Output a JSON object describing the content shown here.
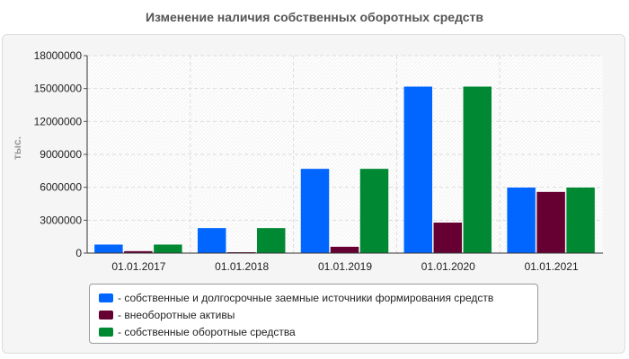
{
  "chart_data": {
    "type": "bar",
    "title": "Изменение наличия собственных оборотных средств",
    "ylabel": "тыс.",
    "xlabel": "",
    "ylim": [
      0,
      18000000
    ],
    "yticks": [
      0,
      3000000,
      6000000,
      9000000,
      12000000,
      15000000,
      18000000
    ],
    "grid": true,
    "legend_position": "bottom",
    "categories": [
      "01.01.2017",
      "01.01.2018",
      "01.01.2019",
      "01.01.2020",
      "01.01.2021"
    ],
    "series": [
      {
        "name": "- собственные и долгосрочные заемные источники формирования средств",
        "color": "#0066ff",
        "values": [
          800000,
          2300000,
          7700000,
          15200000,
          6000000
        ]
      },
      {
        "name": "- внеоборотные активы",
        "color": "#660033",
        "values": [
          200000,
          100000,
          600000,
          2800000,
          5600000
        ]
      },
      {
        "name": "- собственные оборотные средства",
        "color": "#008833",
        "values": [
          800000,
          2300000,
          7700000,
          15200000,
          6000000
        ]
      }
    ]
  }
}
